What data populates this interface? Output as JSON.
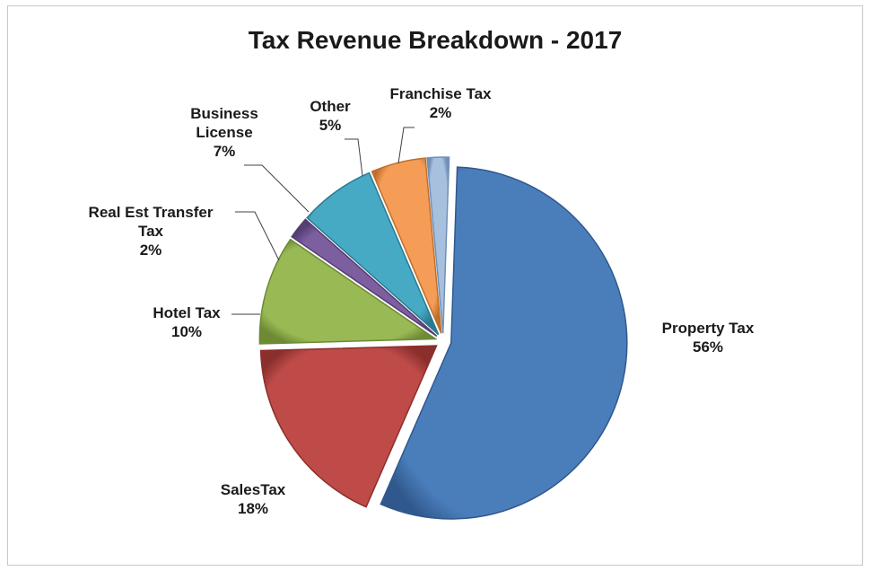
{
  "chart_data": {
    "type": "pie",
    "title": "Tax Revenue Breakdown - 2017",
    "slices": [
      {
        "name": "Property Tax",
        "value": 56,
        "label_lines": [
          "Property Tax",
          "56%"
        ],
        "color": "#4a7ebb",
        "color_dark": "#30588c"
      },
      {
        "name": "SalesTax",
        "value": 18,
        "label_lines": [
          "SalesTax",
          "18%"
        ],
        "color": "#be4b48",
        "color_dark": "#8b2f2d"
      },
      {
        "name": "Hotel Tax",
        "value": 10,
        "label_lines": [
          "Hotel Tax",
          "10%"
        ],
        "color": "#98b954",
        "color_dark": "#6d8a35"
      },
      {
        "name": "Real Est Transfer Tax",
        "value": 2,
        "label_lines": [
          "Real Est Transfer",
          "Tax",
          "2%"
        ],
        "color": "#7d5fa0",
        "color_dark": "#553e73"
      },
      {
        "name": "Business License",
        "value": 7,
        "label_lines": [
          "Business",
          "License",
          "7%"
        ],
        "color": "#46aac5",
        "color_dark": "#2c7a90"
      },
      {
        "name": "Other",
        "value": 5,
        "label_lines": [
          "Other",
          "5%"
        ],
        "color": "#f59d56",
        "color_dark": "#c06e2b"
      },
      {
        "name": "Franchise Tax",
        "value": 2,
        "label_lines": [
          "Franchise Tax",
          "2%"
        ],
        "color": "#a7c0de",
        "color_dark": "#7190b5"
      }
    ]
  }
}
